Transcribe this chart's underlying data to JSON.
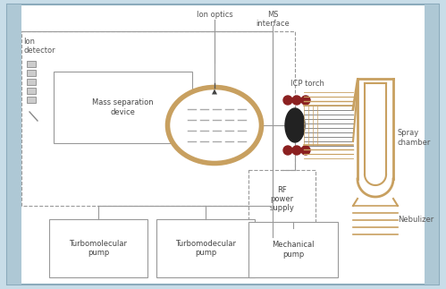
{
  "bg_color": "#c8dde8",
  "inner_bg": "#ffffff",
  "gold_color": "#c8a060",
  "dark_color": "#222222",
  "red_color": "#8b2020",
  "gray_line": "#999999",
  "label_fontsize": 6.0,
  "small_fontsize": 5.2,
  "ion_optics_label": "Ion optics",
  "ms_interface_label": "MS\ninterface",
  "icp_torch_label": "ICP torch",
  "spray_chamber_label": "Spray\nchamber",
  "nebulizer_label": "Nebulizer",
  "ion_detector_label": "Ion\ndetector",
  "mass_sep_label": "Mass separation\ndevice",
  "turbo1_label": "Turbomolecular\npump",
  "turbo2_label": "Turbomodecular\npump",
  "mech_label": "Mechanical\npump",
  "rf_label": "RF\npower\nsupply"
}
